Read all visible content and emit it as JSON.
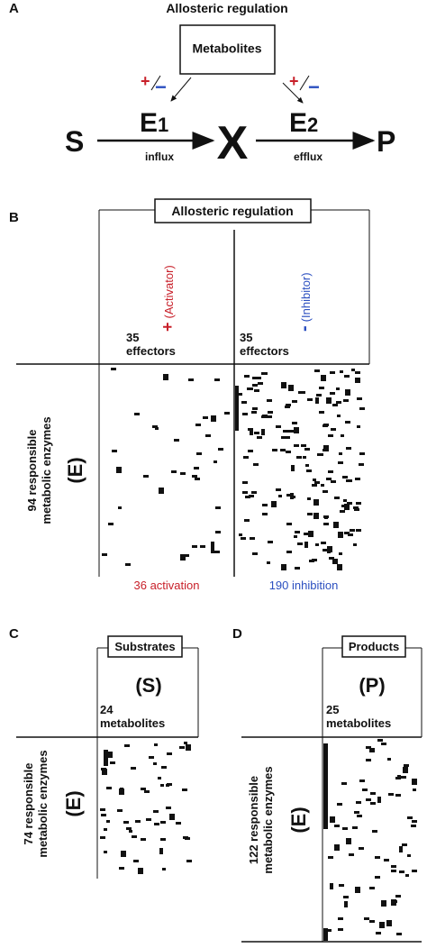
{
  "panel_a": {
    "letter": "A",
    "title": "Allosteric regulation",
    "box": "Metabolites",
    "plus": "+",
    "minus": "−",
    "substrate": "S",
    "enzyme1": {
      "label": "E",
      "sub": "1"
    },
    "intermediate": "X",
    "enzyme2": {
      "label": "E",
      "sub": "2"
    },
    "product": "P",
    "influx": "influx",
    "efflux": "efflux"
  },
  "panel_b": {
    "letter": "B",
    "header": "Allosteric regulation",
    "activator": {
      "sign": "+",
      "label": "(Activator)"
    },
    "inhibitor": {
      "sign": "-",
      "label": "(Inhibitor)"
    },
    "columns": [
      {
        "count": "35",
        "unit": "effectors"
      },
      {
        "count": "35",
        "unit": "effectors"
      }
    ],
    "rows": {
      "line1": "94 responsible",
      "line2": "metabolic enzymes",
      "symbol": "(E)"
    },
    "activation": "36 activation",
    "inhibition": "190 inhibition"
  },
  "panel_c": {
    "letter": "C",
    "header": "Substrates",
    "symbol": "(S)",
    "count": "24",
    "unit": "metabolites",
    "rows": {
      "line1": "74 responsible",
      "line2": "metabolic enzymes",
      "symbol": "(E)"
    }
  },
  "panel_d": {
    "letter": "D",
    "header": "Products",
    "symbol": "(P)",
    "count": "25",
    "unit": "metabolites",
    "rows": {
      "line1": "122 responsible",
      "line2": "metabolic enzymes",
      "symbol": "(E)"
    }
  }
}
